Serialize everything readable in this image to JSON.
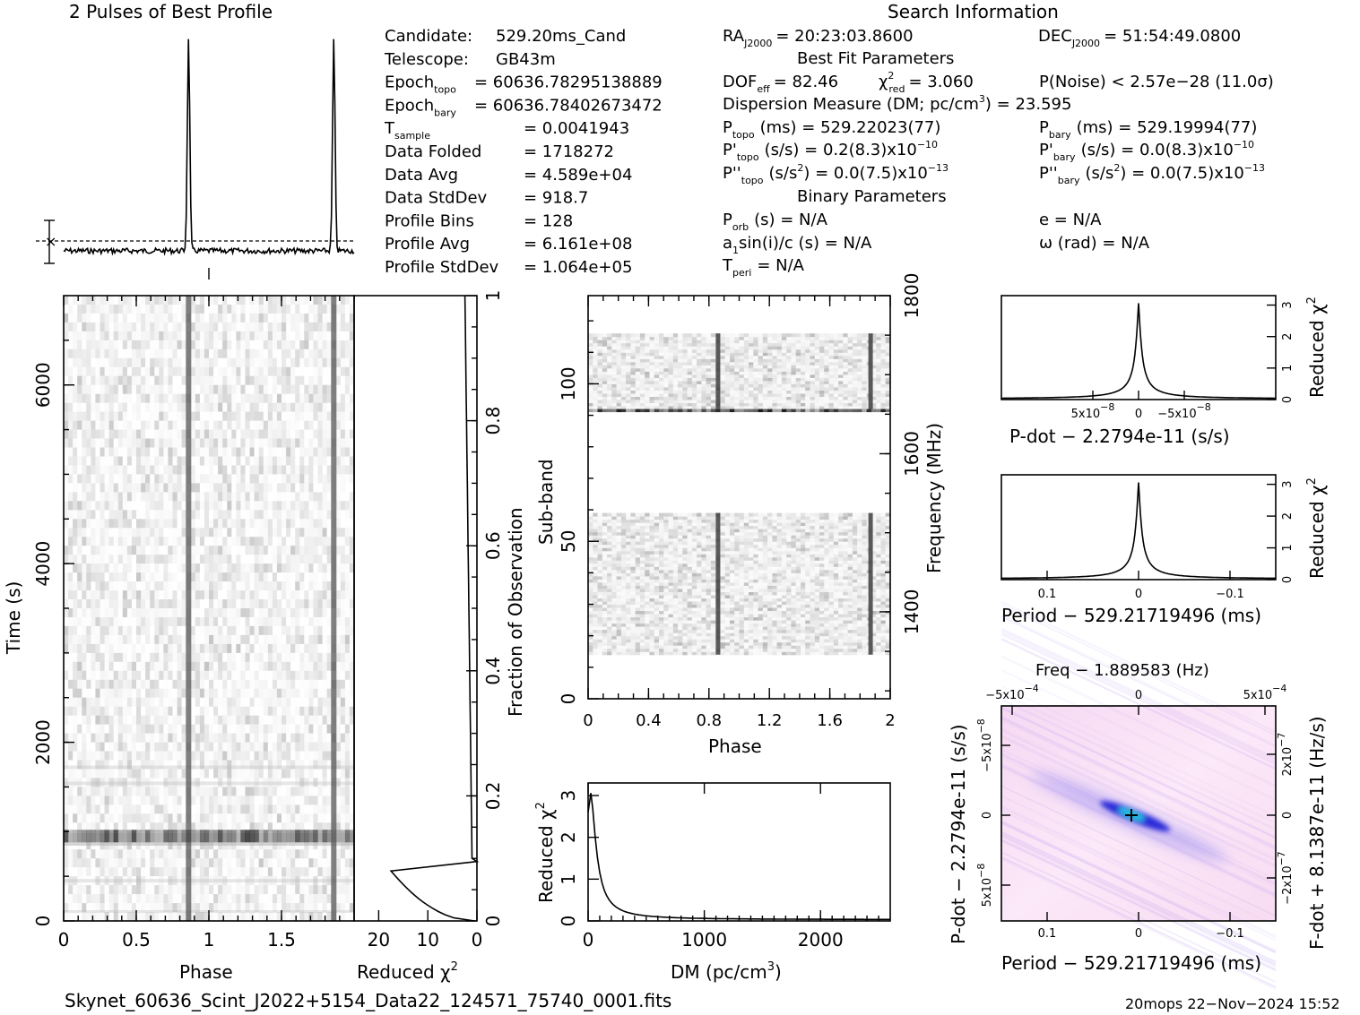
{
  "title_profile": "2 Pulses of Best Profile",
  "title_search": "Search Information",
  "candidate_info": [
    {
      "label": "Candidate:",
      "value": "529.20ms_Cand"
    },
    {
      "label": "Telescope:",
      "value": "GB43m"
    },
    {
      "label": "Epoch",
      "sub": "topo",
      "value": "= 60636.78295138889"
    },
    {
      "label": "Epoch",
      "sub": "bary",
      "value": "= 60636.78402673472"
    },
    {
      "label": "T",
      "sub": "sample",
      "value": "=   0.0041943"
    },
    {
      "label": "Data Folded",
      "value": "=   1718272"
    },
    {
      "label": "Data Avg",
      "value": "=   4.589e+04"
    },
    {
      "label": "Data StdDev",
      "value": "=   918.7"
    },
    {
      "label": "Profile Bins",
      "value": "=   128"
    },
    {
      "label": "Profile Avg",
      "value": "=   6.161e+08"
    },
    {
      "label": "Profile StdDev",
      "value": "=   1.064e+05"
    }
  ],
  "ra": {
    "label": "RA",
    "sub": "J2000",
    "value": "= 20:23:03.8600"
  },
  "dec": {
    "label": "DEC",
    "sub": "J2000",
    "value": "= 51:54:49.0800"
  },
  "best_fit_header": "Best Fit Parameters",
  "dof": {
    "label": "DOF",
    "sub": "eff",
    "value": "= 82.46"
  },
  "chi2": {
    "label": "χ",
    "sup": "2",
    "sub": "red",
    "value": "= 3.060"
  },
  "pnoise": "P(Noise) < 2.57e−28   (11.0σ)",
  "dm_line": {
    "label": "Dispersion Measure (DM; pc/cm",
    "sup": "3",
    "value": ") = 23.595"
  },
  "ptopo": {
    "label": "P",
    "sub": "topo",
    "value": "(ms) =   529.22023(77)"
  },
  "pbary": {
    "label": "P",
    "sub": "bary",
    "value": "(ms) =   529.19994(77)"
  },
  "pdtopo": {
    "label": "P'",
    "sub": "topo",
    "value": "(s/s) =   0.2(8.3)x10",
    "sup": "−10"
  },
  "pdbary": {
    "label": "P'",
    "sub": "bary",
    "value": "(s/s) = 0.0(8.3)x10",
    "sup": "−10"
  },
  "pddtopo": {
    "label": "P''",
    "sub": "topo",
    "value": "(s/s",
    "sup": "2",
    "value2": ") = 0.0(7.5)x10",
    "sup2": "−13"
  },
  "pddbary": {
    "label": "P''",
    "sub": "bary",
    "value": "(s/s",
    "sup": "2",
    "value2": ") = 0.0(7.5)x10",
    "sup2": "−13"
  },
  "binary_header": "Binary Parameters",
  "porb": {
    "label": "P",
    "sub": "orb",
    "value": "(s) = N/A"
  },
  "a1": {
    "label": "a",
    "sub": "1",
    "value": "sin(i)/c (s) = N/A"
  },
  "tperi": {
    "label": "T",
    "sub": "peri",
    "value": "= N/A"
  },
  "ecc": "e = N/A",
  "omega": "ω (rad) = N/A",
  "footer_file": "Skynet_60636_Scint_J2022+5154_Data22_124571_75740_0001.fits",
  "footer_stamp": "20mops 22−Nov−2024 15:52",
  "chart_data": [
    {
      "id": "profile",
      "type": "line",
      "title": "2 Pulses of Best Profile",
      "xlim": [
        0,
        2
      ],
      "pulse_phases": [
        0.86,
        1.86
      ],
      "baseline": 0.12,
      "peak": 1.0
    },
    {
      "id": "time_phase",
      "type": "heatmap",
      "xlabel": "Phase",
      "ylabel": "Time (s)",
      "xlim": [
        0,
        2
      ],
      "ylim": [
        0,
        7000
      ],
      "x_ticks": [
        "0",
        "0.5",
        "1",
        "1.5"
      ],
      "x_tick_values": [
        0,
        0.5,
        1,
        1.5
      ],
      "y_ticks": [
        "0",
        "2000",
        "4000",
        "6000"
      ],
      "y_tick_values": [
        0,
        2000,
        4000,
        6000
      ],
      "pulse_phases": [
        0.86,
        1.86
      ],
      "rfi_time_s": 950
    },
    {
      "id": "time_chi2",
      "type": "line",
      "xlabel": "Reduced χ",
      "xlabel_sup": "2",
      "ylabel": "Fraction of Observation",
      "x_ticks": [
        "20",
        "10",
        "0"
      ],
      "x_tick_values": [
        20,
        10,
        0
      ],
      "y_ticks": [
        "0",
        "0.2",
        "0.4",
        "0.6",
        "0.8",
        "1"
      ],
      "y_tick_values": [
        0,
        0.2,
        0.4,
        0.6,
        0.8,
        1
      ],
      "xlim": [
        25,
        0
      ],
      "ylim": [
        0,
        1
      ]
    },
    {
      "id": "subband_phase",
      "type": "heatmap",
      "xlabel": "Phase",
      "ylabel": "Sub-band",
      "ylabel_right": "Frequency (MHz)",
      "xlim": [
        0,
        2
      ],
      "ylim": [
        0,
        128
      ],
      "x_ticks": [
        "0",
        "0.4",
        "0.8",
        "1.2",
        "1.6",
        "2"
      ],
      "x_tick_values": [
        0,
        0.4,
        0.8,
        1.2,
        1.6,
        2
      ],
      "y_ticks": [
        "0",
        "50",
        "100"
      ],
      "y_tick_values": [
        0,
        50,
        100
      ],
      "y2_ticks": [
        "1400",
        "1600",
        "1800"
      ],
      "y2_tick_values": [
        1400,
        1600,
        1800
      ],
      "y2lim": [
        1290,
        1800
      ],
      "data_bands": [
        [
          14,
          59
        ],
        [
          92,
          116
        ]
      ],
      "rfi_band": 91,
      "pulse_phases": [
        0.86,
        1.87
      ]
    },
    {
      "id": "dm_chi2",
      "type": "line",
      "xlabel": "DM (pc/cm",
      "xlabel_sup": "3",
      "xlabel_end": ")",
      "ylabel": "Reduced χ",
      "ylabel_sup": "2",
      "xlim": [
        0,
        2600
      ],
      "ylim": [
        0,
        3.3
      ],
      "x_ticks": [
        "0",
        "1000",
        "2000"
      ],
      "x_tick_values": [
        0,
        1000,
        2000
      ],
      "y_ticks": [
        "0",
        "1",
        "2",
        "3"
      ],
      "y_tick_values": [
        0,
        1,
        2,
        3
      ],
      "peak_dm": 23.595,
      "peak_chi2": 3.06
    },
    {
      "id": "pdot_chi2",
      "type": "line",
      "xlabel": "P-dot − 2.2794e-11 (s/s)",
      "ylabel_right": "Reduced χ",
      "ylabel_right_sup": "2",
      "y_ticks": [
        "0",
        "1",
        "2",
        "3"
      ],
      "y_tick_values": [
        0,
        1,
        2,
        3
      ],
      "x_ticks": [
        "5x10",
        "0",
        "−5x10"
      ],
      "x_tick_sups": [
        "−8",
        "",
        "−8"
      ],
      "xlim": [
        1.5e-07,
        -1.5e-07
      ],
      "ylim": [
        0,
        3.3
      ],
      "peak_chi2": 3.06
    },
    {
      "id": "period_chi2",
      "type": "line",
      "xlabel": "Period − 529.21719496 (ms)",
      "ylabel_right": "Reduced χ",
      "ylabel_right_sup": "2",
      "y_ticks": [
        "0",
        "1",
        "2",
        "3"
      ],
      "y_tick_values": [
        0,
        1,
        2,
        3
      ],
      "x_ticks": [
        "0.1",
        "0",
        "−0.1"
      ],
      "x_tick_values": [
        0.1,
        0,
        -0.1
      ],
      "xlim": [
        0.15,
        -0.15
      ],
      "ylim": [
        0,
        3.3
      ],
      "peak_chi2": 3.06
    },
    {
      "id": "p_pdot_plane",
      "type": "heatmap",
      "title": "Freq − 1.889583 (Hz)",
      "xlabel": "Period − 529.21719496 (ms)",
      "ylabel": "P-dot − 2.2794e-11 (s/s)",
      "ylabel_right": "F-dot + 8.1387e-11 (Hz/s)",
      "x_ticks": [
        "0.1",
        "0",
        "−0.1"
      ],
      "x_tick_values": [
        0.1,
        0,
        -0.1
      ],
      "top_ticks": [
        "−5x10",
        "0",
        "5x10"
      ],
      "top_tick_sups": [
        "−4",
        "",
        "−4"
      ],
      "left_ticks": [
        "−5x10",
        "0",
        "5x10"
      ],
      "left_tick_sups": [
        "−8",
        "",
        "−8"
      ],
      "right_ticks": [
        "2x10",
        "0",
        "−2x10"
      ],
      "right_tick_sups": [
        "−7",
        "",
        "−7"
      ],
      "xlim": [
        0.15,
        -0.15
      ],
      "best_period": 0,
      "best_pdot": 0
    }
  ]
}
